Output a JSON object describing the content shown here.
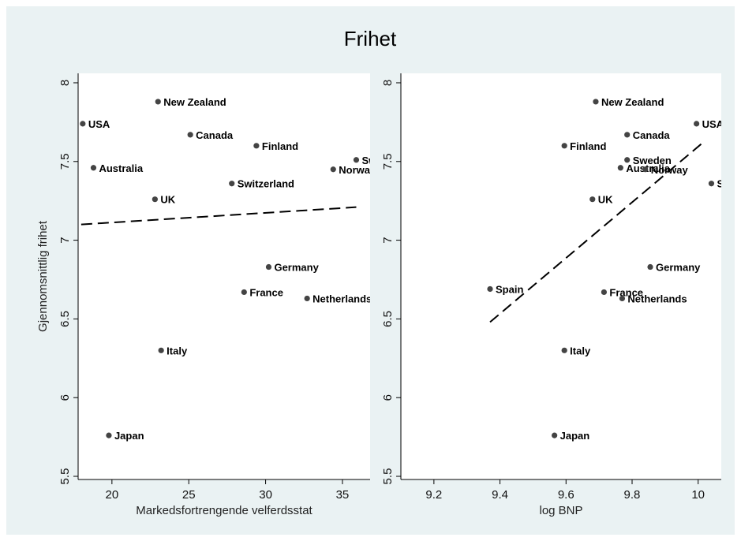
{
  "title": "Frihet",
  "chart_data": [
    {
      "type": "scatter",
      "xlabel": "Markedsfortrengende velferdsstat",
      "ylabel": "Gjennomsnittlig frihet",
      "xlim": [
        17.8,
        36.8
      ],
      "ylim": [
        5.48,
        8.06
      ],
      "xticks": [
        "20",
        "25",
        "30",
        "35"
      ],
      "yticks": [
        "5.5",
        "6",
        "6.5",
        "7",
        "7.5",
        "8"
      ],
      "points": [
        {
          "label": "USA",
          "x": 18.1,
          "y": 7.74
        },
        {
          "label": "New Zealand",
          "x": 23.0,
          "y": 7.88
        },
        {
          "label": "Canada",
          "x": 25.1,
          "y": 7.67
        },
        {
          "label": "Finland",
          "x": 29.4,
          "y": 7.6
        },
        {
          "label": "Australia",
          "x": 18.8,
          "y": 7.46
        },
        {
          "label": "Swe",
          "x": 35.9,
          "y": 7.51
        },
        {
          "label": "Norway",
          "x": 34.4,
          "y": 7.45
        },
        {
          "label": "Switzerland",
          "x": 27.8,
          "y": 7.36
        },
        {
          "label": "UK",
          "x": 22.8,
          "y": 7.26
        },
        {
          "label": "Germany",
          "x": 30.2,
          "y": 6.83
        },
        {
          "label": "France",
          "x": 28.6,
          "y": 6.67
        },
        {
          "label": "Netherlands",
          "x": 32.7,
          "y": 6.63
        },
        {
          "label": "Italy",
          "x": 23.2,
          "y": 6.3
        },
        {
          "label": "Japan",
          "x": 19.8,
          "y": 5.76
        }
      ],
      "fit_line": {
        "x": [
          18.0,
          35.9
        ],
        "y": [
          7.1,
          7.21
        ]
      }
    },
    {
      "type": "scatter",
      "xlabel": "log BNP",
      "ylabel": "",
      "xlim": [
        9.1,
        10.07
      ],
      "ylim": [
        5.48,
        8.06
      ],
      "xticks": [
        "9.2",
        "9.4",
        "9.6",
        "9.8",
        "10"
      ],
      "yticks": [
        "5.5",
        "6",
        "6.5",
        "7",
        "7.5",
        "8"
      ],
      "points": [
        {
          "label": "New Zealand",
          "x": 9.69,
          "y": 7.88
        },
        {
          "label": "USA",
          "x": 9.995,
          "y": 7.74
        },
        {
          "label": "Canada",
          "x": 9.785,
          "y": 7.67
        },
        {
          "label": "Finland",
          "x": 9.595,
          "y": 7.6
        },
        {
          "label": "Sweden",
          "x": 9.785,
          "y": 7.51
        },
        {
          "label": "Australia",
          "x": 9.765,
          "y": 7.46
        },
        {
          "label": "Norway",
          "x": 9.84,
          "y": 7.45
        },
        {
          "label": "Swit",
          "x": 10.04,
          "y": 7.36
        },
        {
          "label": "UK",
          "x": 9.68,
          "y": 7.26
        },
        {
          "label": "Germany",
          "x": 9.855,
          "y": 6.83
        },
        {
          "label": "Spain",
          "x": 9.37,
          "y": 6.69
        },
        {
          "label": "France",
          "x": 9.715,
          "y": 6.67
        },
        {
          "label": "Netherlands",
          "x": 9.77,
          "y": 6.63
        },
        {
          "label": "Italy",
          "x": 9.595,
          "y": 6.3
        },
        {
          "label": "Japan",
          "x": 9.565,
          "y": 5.76
        }
      ],
      "fit_line": {
        "x": [
          9.37,
          10.02
        ],
        "y": [
          6.48,
          7.63
        ]
      }
    }
  ]
}
